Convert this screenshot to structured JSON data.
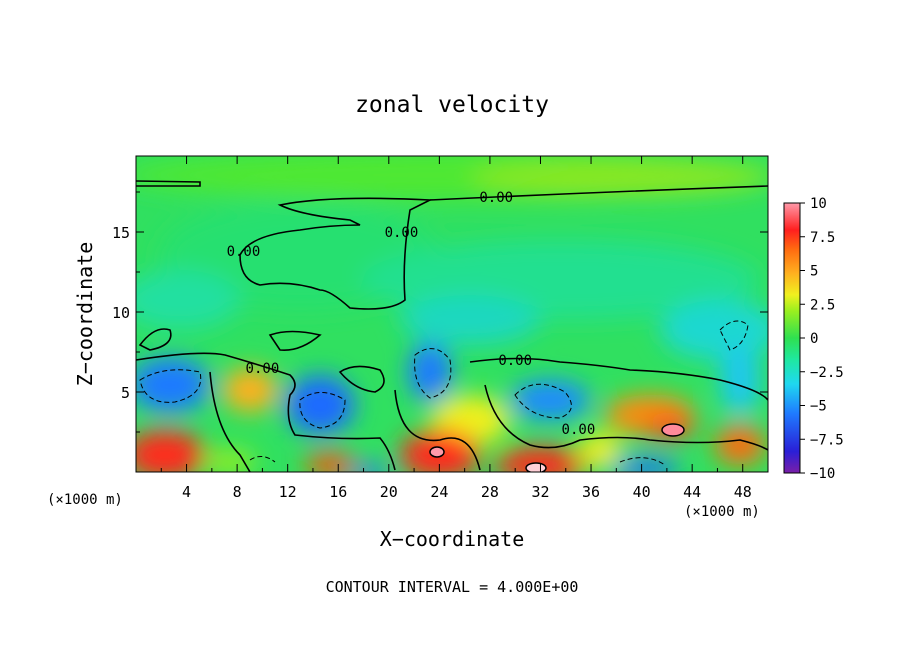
{
  "chart_data": {
    "type": "heatmap",
    "title": "zonal velocity",
    "xlabel": "X−coordinate",
    "ylabel": "Z−coordinate",
    "x_scale_note_left": "(×1000 m)",
    "x_scale_note_right": "(×1000 m)",
    "footer": "CONTOUR INTERVAL = 4.000E+00",
    "xlim": [
      0,
      50
    ],
    "ylim": [
      0,
      19.75
    ],
    "x_ticks": [
      "4",
      "8",
      "12",
      "16",
      "20",
      "24",
      "28",
      "32",
      "36",
      "40",
      "44",
      "48"
    ],
    "y_ticks": [
      "5",
      "10",
      "15"
    ],
    "colorbar": {
      "range": [
        -10,
        10
      ],
      "tick_labels": [
        "10",
        "7.5",
        "5",
        "2.5",
        "0",
        "−2.5",
        "−5",
        "−7.5",
        "−10"
      ],
      "colors": [
        "#7a1fa8",
        "#2a1fd6",
        "#1f7aff",
        "#1fd8f0",
        "#1fe8a0",
        "#2fe050",
        "#9aef1f",
        "#f0f01f",
        "#ffb01f",
        "#ff6a10",
        "#ff1f1f",
        "#ff9aaa"
      ]
    },
    "contour_labels": [
      {
        "text": "0.00",
        "x": 28.5,
        "z": 17.2
      },
      {
        "text": "0.00",
        "x": 8.5,
        "z": 13.8
      },
      {
        "text": "0.00",
        "x": 21.0,
        "z": 15.0
      },
      {
        "text": "0.00",
        "x": 10.0,
        "z": 6.5
      },
      {
        "text": "0.00",
        "x": 30.0,
        "z": 7.0
      },
      {
        "text": "0.00",
        "x": 35.0,
        "z": 2.7
      }
    ],
    "field_features": [
      {
        "kind": "max",
        "x": 2.5,
        "z": 1.2,
        "value": 6
      },
      {
        "kind": "max",
        "x": 23.5,
        "z": 1.5,
        "value": 8
      },
      {
        "kind": "max",
        "x": 31.5,
        "z": 0.4,
        "value": 10
      },
      {
        "kind": "max",
        "x": 42.5,
        "z": 2.8,
        "value": 8
      },
      {
        "kind": "max",
        "x": 9.0,
        "z": 5.3,
        "value": 6
      },
      {
        "kind": "max",
        "x": 15.5,
        "z": 0.6,
        "value": 7
      },
      {
        "kind": "max",
        "x": 47.5,
        "z": 1.5,
        "value": 6
      },
      {
        "kind": "min",
        "x": 3.0,
        "z": 5.5,
        "value": -6
      },
      {
        "kind": "min",
        "x": 15.5,
        "z": 4.0,
        "value": -6
      },
      {
        "kind": "min",
        "x": 23.3,
        "z": 6.0,
        "value": -6
      },
      {
        "kind": "min",
        "x": 33.0,
        "z": 4.5,
        "value": -6
      },
      {
        "kind": "min",
        "x": 40.5,
        "z": 0.6,
        "value": -6
      },
      {
        "kind": "min",
        "x": 18.5,
        "z": 0.3,
        "value": -6
      },
      {
        "kind": "min",
        "x": 48.0,
        "z": 9.0,
        "value": -3
      }
    ]
  }
}
